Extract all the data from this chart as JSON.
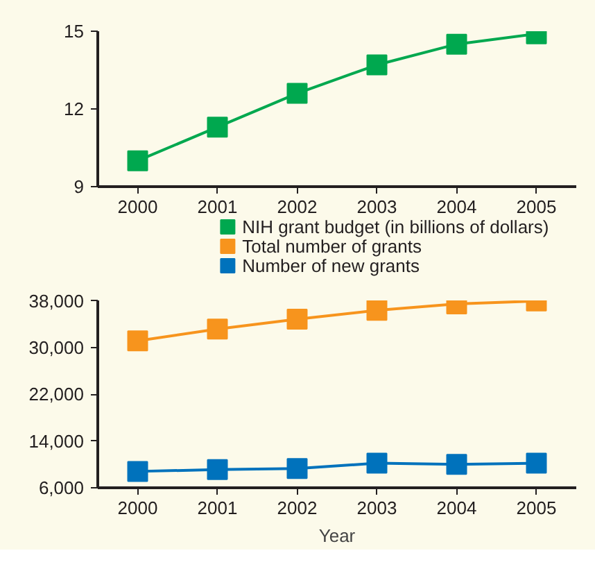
{
  "chart_data": [
    {
      "type": "line",
      "categories": [
        "2000",
        "2001",
        "2002",
        "2003",
        "2004",
        "2005"
      ],
      "ylim": [
        9,
        15
      ],
      "yticks": [
        9,
        12,
        15
      ],
      "marker": "square",
      "legend": "bottom",
      "grid": false,
      "series": [
        {
          "name": "NIH grant budget (in billions of dollars)",
          "color": "#00a84f",
          "values": [
            10.0,
            11.3,
            12.6,
            13.7,
            14.5,
            14.9
          ]
        }
      ]
    },
    {
      "type": "line",
      "categories": [
        "2000",
        "2001",
        "2002",
        "2003",
        "2004",
        "2005"
      ],
      "xlabel": "Year",
      "ylim": [
        6000,
        38000
      ],
      "yticks": [
        {
          "value": 6000,
          "label": "6,000"
        },
        {
          "value": 14000,
          "label": "14,000"
        },
        {
          "value": 22000,
          "label": "22,000"
        },
        {
          "value": 30000,
          "label": "30,000"
        },
        {
          "value": 38000,
          "label": "38,000"
        }
      ],
      "marker": "square",
      "legend": "top",
      "grid": false,
      "series": [
        {
          "name": "Total number of grants",
          "color": "#f7941d",
          "values": [
            31100,
            33100,
            34800,
            36300,
            37400,
            37900
          ]
        },
        {
          "name": "Number of new grants",
          "color": "#0072bc",
          "values": [
            8800,
            9100,
            9300,
            10200,
            10000,
            10200
          ]
        }
      ]
    }
  ]
}
